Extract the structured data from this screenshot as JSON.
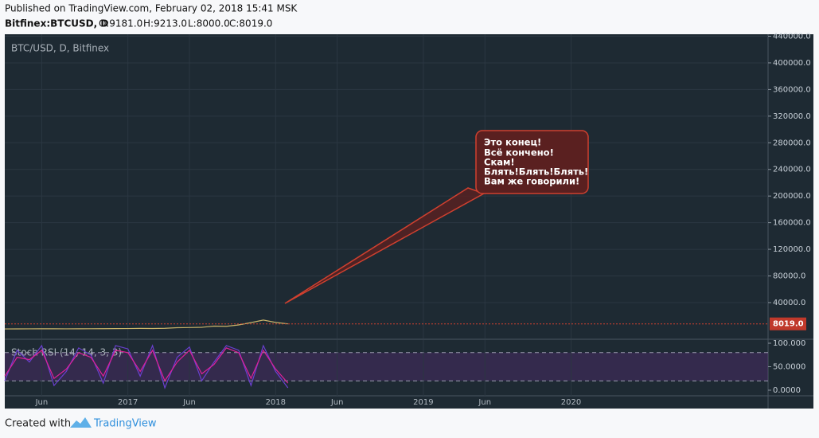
{
  "header": {
    "published": "Published on TradingView.com, February 02, 2018 15:41 MSK",
    "symbol": "Bitfinex:BTCUSD, D",
    "ohlc": [
      "O:9181.0",
      "H:9213.0",
      "L:8000.0",
      "C:8019.0"
    ]
  },
  "chart_data": [
    {
      "type": "line",
      "title": "BTC/USD, D, Bitfinex",
      "x": [
        "2016-03",
        "2016-04",
        "2016-05",
        "2016-06",
        "2016-07",
        "2016-08",
        "2016-09",
        "2016-10",
        "2016-11",
        "2016-12",
        "2017-01",
        "2017-02",
        "2017-03",
        "2017-04",
        "2017-05",
        "2017-06",
        "2017-07",
        "2017-08",
        "2017-09",
        "2017-10",
        "2017-11",
        "2017-12",
        "2018-01",
        "2018-02"
      ],
      "series": [
        {
          "name": "BTC/USD",
          "color": "#c9b46a",
          "values": [
            415,
            450,
            530,
            670,
            620,
            575,
            610,
            700,
            740,
            960,
            970,
            1190,
            1080,
            1350,
            2300,
            2500,
            2870,
            4700,
            4340,
            6450,
            9900,
            13800,
            10200,
            8019
          ]
        }
      ],
      "last": {
        "value": 8019,
        "label": "8019.0"
      },
      "xlim": [
        "2016-03",
        "2021-05"
      ],
      "xticks": [
        {
          "value": "2016-06",
          "label": "Jun"
        },
        {
          "value": "2017-01",
          "label": "2017"
        },
        {
          "value": "2017-06",
          "label": "Jun"
        },
        {
          "value": "2018-01",
          "label": "2018"
        },
        {
          "value": "2018-06",
          "label": "Jun"
        },
        {
          "value": "2019-01",
          "label": "2019"
        },
        {
          "value": "2019-06",
          "label": "Jun"
        },
        {
          "value": "2020-01",
          "label": "2020"
        }
      ],
      "ylim": [
        -13876,
        443000
      ],
      "yticks": [
        {
          "value": 40000,
          "label": "40000.0"
        },
        {
          "value": 80000,
          "label": "80000.0"
        },
        {
          "value": 120000,
          "label": "120000.0"
        },
        {
          "value": 160000,
          "label": "160000.0"
        },
        {
          "value": 200000,
          "label": "200000.0"
        },
        {
          "value": 240000,
          "label": "240000.0"
        },
        {
          "value": 280000,
          "label": "280000.0"
        },
        {
          "value": 320000,
          "label": "320000.0"
        },
        {
          "value": 360000,
          "label": "360000.0"
        },
        {
          "value": 400000,
          "label": "400000.0"
        },
        {
          "value": 440000,
          "label": "440000.0"
        }
      ],
      "grid": true
    },
    {
      "type": "line",
      "title": "Stoch RSI (14, 14, 3, 3)",
      "x": [
        "2016-03",
        "2016-04",
        "2016-05",
        "2016-06",
        "2016-07",
        "2016-08",
        "2016-09",
        "2016-10",
        "2016-11",
        "2016-12",
        "2017-01",
        "2017-02",
        "2017-03",
        "2017-04",
        "2017-05",
        "2017-06",
        "2017-07",
        "2017-08",
        "2017-09",
        "2017-10",
        "2017-11",
        "2017-12",
        "2018-01",
        "2018-02"
      ],
      "series": [
        {
          "name": "K",
          "color": "#6a3fd0",
          "values": [
            20,
            85,
            60,
            95,
            10,
            40,
            90,
            75,
            15,
            95,
            88,
            30,
            95,
            5,
            70,
            92,
            20,
            60,
            95,
            85,
            10,
            95,
            40,
            5
          ]
        },
        {
          "name": "D",
          "color": "#e0209a",
          "values": [
            30,
            70,
            65,
            85,
            25,
            45,
            80,
            70,
            30,
            85,
            80,
            40,
            85,
            20,
            60,
            85,
            35,
            55,
            90,
            80,
            25,
            85,
            45,
            15
          ]
        }
      ],
      "bands": [
        20,
        80
      ],
      "xlim": [
        "2016-03",
        "2021-05"
      ],
      "ylim": [
        -11.9,
        106.8
      ],
      "yticks": [
        {
          "value": 0,
          "label": "0.0000"
        },
        {
          "value": 50,
          "label": "50.0000"
        },
        {
          "value": 100,
          "label": "100.000"
        }
      ],
      "grid": true
    }
  ],
  "annotation": {
    "lines": [
      "Это конец!",
      "Всё кончено!",
      "Скам!",
      "Блять!Блять!Блять!",
      "Вам же говорили!"
    ]
  },
  "footer": {
    "created": "Created with",
    "brand": "TradingView"
  }
}
